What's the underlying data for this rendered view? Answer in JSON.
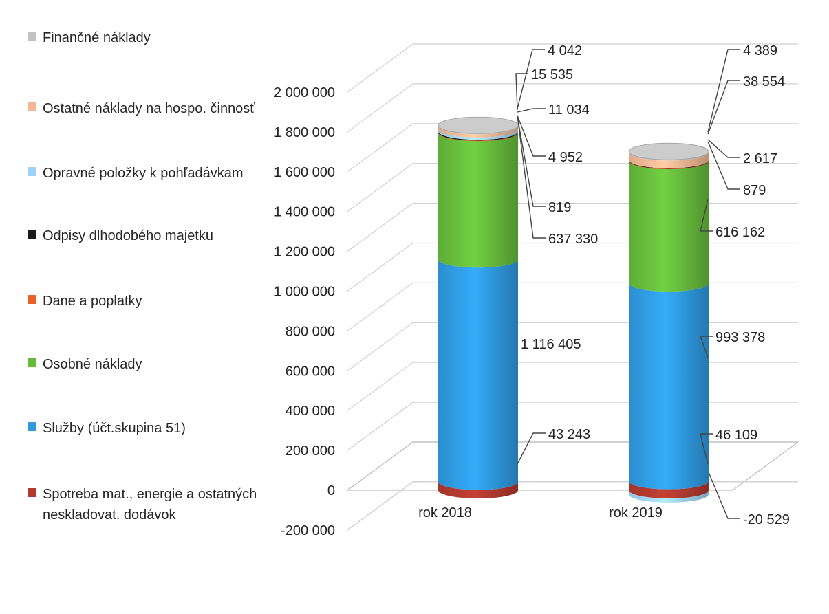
{
  "chart_data": {
    "type": "bar",
    "subtype": "stacked-cylinder-3d",
    "categories": [
      "rok 2018",
      "rok 2019"
    ],
    "ylim": [
      -200000,
      2000000
    ],
    "yticks": [
      -200000,
      0,
      200000,
      400000,
      600000,
      800000,
      1000000,
      1200000,
      1400000,
      1600000,
      1800000,
      2000000
    ],
    "ytick_labels": [
      "-200 000",
      "0",
      "200 000",
      "400 000",
      "600 000",
      "800 000",
      "1 000 000",
      "1 200 000",
      "1 400 000",
      "1 600 000",
      "1 800 000",
      "2 000 000"
    ],
    "grid": true,
    "legend_position": "left",
    "series": [
      {
        "name": "Spotreba mat., energie a ostatných neskladovat. dodávok",
        "color": "#b03a2e",
        "values": [
          43243,
          46109
        ],
        "labels": [
          "43 243",
          "46 109"
        ]
      },
      {
        "name": "Služby (účt.skupina 51)",
        "color": "#2f9ae0",
        "values": [
          1116405,
          993378
        ],
        "labels": [
          "1 116 405",
          "993 378"
        ]
      },
      {
        "name": "Osobné náklady",
        "color": "#66bb3c",
        "values": [
          637330,
          616162
        ],
        "labels": [
          "637 330",
          "616 162"
        ]
      },
      {
        "name": "Dane a poplatky",
        "color": "#e8622a",
        "values": [
          819,
          879
        ],
        "labels": [
          "819",
          "879"
        ]
      },
      {
        "name": "Odpisy dlhodobého majetku",
        "color": "#1a1a1a",
        "values": [
          4952,
          2617
        ],
        "labels": [
          "4 952",
          "2 617"
        ]
      },
      {
        "name": "Opravné položky k pohľadávkam",
        "color": "#9fd3f5",
        "values": [
          11034,
          -20529
        ],
        "labels": [
          "11 034",
          "-20 529"
        ]
      },
      {
        "name": "Ostatné náklady na hospo. činnosť",
        "color": "#f4b795",
        "values": [
          15535,
          38554
        ],
        "labels": [
          "15 535",
          "38 554"
        ]
      },
      {
        "name": "Finančné náklady",
        "color": "#c2c2c2",
        "values": [
          4042,
          4389
        ],
        "labels": [
          "4 042",
          "4 389"
        ]
      }
    ]
  },
  "legend": {
    "items": [
      {
        "label": "Finančné náklady",
        "color": "#c2c2c2"
      },
      {
        "label": "Ostatné náklady na hospo. činnosť",
        "color": "#f4b795"
      },
      {
        "label": "Opravné položky k pohľadávkam",
        "color": "#9fd3f5"
      },
      {
        "label": "Odpisy dlhodobého majetku",
        "color": "#1a1a1a"
      },
      {
        "label": "Dane a poplatky",
        "color": "#e8622a"
      },
      {
        "label": "Osobné náklady",
        "color": "#66bb3c"
      },
      {
        "label": "Služby (účt.skupina 51)",
        "color": "#2f9ae0"
      },
      {
        "label": "Spotreba mat., energie a ostatných neskladovat. dodávok",
        "color": "#b03a2e"
      }
    ]
  }
}
